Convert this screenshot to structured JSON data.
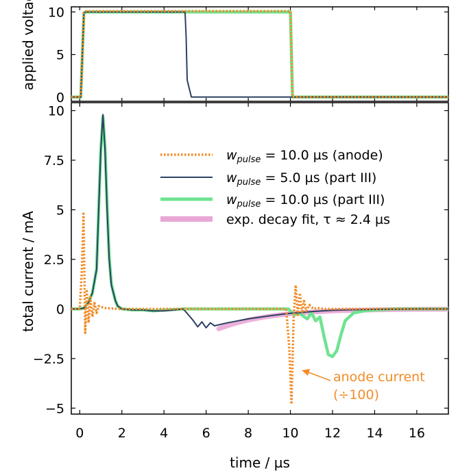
{
  "chart_data": [
    {
      "type": "line",
      "xlim": [
        -0.4,
        17.5
      ],
      "ylim": [
        -0.5,
        10.6
      ],
      "yticks": [
        0,
        5,
        10
      ],
      "series": [
        {
          "name": "w_pulse = 10.0 µs (anode)",
          "color": "#f28c28",
          "style": "dotted",
          "x": [
            -0.4,
            0,
            0.05,
            0.2,
            0.3,
            9.9,
            10.0,
            10.1,
            17.5
          ],
          "y": [
            0,
            0,
            0,
            9.9,
            10.1,
            10.1,
            10.1,
            0,
            0
          ]
        },
        {
          "name": "w_pulse = 5.0 µs (part III)",
          "color": "#2c4060",
          "style": "solid",
          "x": [
            -0.4,
            0,
            0.05,
            0.2,
            0.3,
            5.0,
            5.05,
            5.1,
            5.3,
            17.5
          ],
          "y": [
            0,
            0,
            0,
            9.9,
            10.0,
            10.0,
            7,
            2,
            0,
            0
          ]
        },
        {
          "name": "w_pulse = 10.0 µs (part III)",
          "color": "#6fe391",
          "style": "solid",
          "x": [
            -0.4,
            0,
            0.05,
            0.2,
            0.3,
            9.9,
            10.0,
            10.1,
            17.5
          ],
          "y": [
            0,
            0,
            0,
            9.9,
            10.0,
            10.0,
            10.0,
            0,
            0
          ]
        }
      ]
    },
    {
      "type": "line",
      "xlim": [
        -0.4,
        17.5
      ],
      "ylim": [
        -5.3,
        10.4
      ],
      "xticks": [
        0,
        2,
        4,
        6,
        8,
        10,
        12,
        14,
        16
      ],
      "yticks": [
        -5,
        -2.5,
        0,
        2.5,
        5,
        7.5,
        10
      ],
      "series": [
        {
          "name": "anode",
          "color": "#f28c28",
          "style": "dotted",
          "x": [
            -0.4,
            0,
            0.1,
            0.18,
            0.26,
            0.34,
            0.42,
            0.5,
            0.6,
            0.7,
            0.8,
            0.9,
            1.0,
            1.2,
            1.5,
            2,
            9.8,
            9.95,
            10.05,
            10.15,
            10.25,
            10.35,
            10.45,
            10.55,
            10.65,
            10.75,
            10.9,
            11.1,
            11.3,
            11.6,
            12,
            17.5
          ],
          "y": [
            0,
            0,
            2.0,
            4.8,
            -1.2,
            0.9,
            -0.7,
            0.6,
            -0.4,
            0.3,
            -0.2,
            0.15,
            0.1,
            0.05,
            0.02,
            0,
            0,
            -2,
            -4.8,
            -0.5,
            1.2,
            -0.3,
            0.8,
            -0.2,
            0.4,
            -0.1,
            0.2,
            0,
            0.05,
            0,
            0,
            0
          ]
        },
        {
          "name": "w_pulse = 5.0 µs (part III)",
          "color": "#2c4060",
          "style": "solid",
          "x": [
            -0.4,
            0,
            0.2,
            0.4,
            0.6,
            0.8,
            0.9,
            1.0,
            1.1,
            1.2,
            1.3,
            1.4,
            1.5,
            1.6,
            1.7,
            1.8,
            2.0,
            2.5,
            3,
            3.5,
            4,
            4.5,
            4.9,
            5.0,
            5.2,
            5.4,
            5.6,
            5.8,
            6.0,
            6.2,
            6.4,
            6.6,
            6.8,
            7,
            7.5,
            8,
            8.5,
            9,
            9.5,
            10,
            10.5,
            11,
            12,
            13,
            14,
            15,
            16,
            17.5
          ],
          "y": [
            0,
            0,
            0.05,
            0.3,
            0.8,
            2.0,
            5.0,
            8.0,
            9.8,
            8.0,
            5.0,
            2.5,
            1.2,
            0.8,
            0.4,
            0.15,
            0,
            -0.05,
            -0.05,
            -0.1,
            -0.1,
            -0.05,
            0,
            -0.1,
            -0.35,
            -0.6,
            -0.9,
            -0.65,
            -0.95,
            -0.7,
            -0.85,
            -0.8,
            -0.75,
            -0.7,
            -0.6,
            -0.5,
            -0.42,
            -0.35,
            -0.28,
            -0.22,
            -0.18,
            -0.13,
            -0.07,
            -0.04,
            -0.02,
            -0.01,
            0,
            0
          ]
        },
        {
          "name": "w_pulse = 10.0 µs (part III)",
          "color": "#6fe391",
          "style": "solid",
          "x": [
            -0.4,
            0,
            0.2,
            0.4,
            0.6,
            0.8,
            0.9,
            1.0,
            1.1,
            1.2,
            1.3,
            1.4,
            1.5,
            1.6,
            1.7,
            1.8,
            2.0,
            2.5,
            3,
            3.5,
            4,
            5,
            6,
            7,
            8,
            9,
            9.9,
            10.0,
            10.2,
            10.4,
            10.6,
            10.8,
            11.0,
            11.2,
            11.4,
            11.6,
            11.8,
            12.0,
            12.2,
            12.4,
            12.6,
            13.0,
            13.5,
            14,
            15,
            16,
            17.5
          ],
          "y": [
            0,
            0,
            0.05,
            0.3,
            0.8,
            2.0,
            5.0,
            8.0,
            9.7,
            8.2,
            5.3,
            2.6,
            1.3,
            0.8,
            0.4,
            0.15,
            0,
            -0.05,
            -0.05,
            -0.1,
            -0.05,
            0,
            0,
            0,
            0,
            0,
            0,
            -0.1,
            -0.3,
            -0.2,
            -0.35,
            -0.5,
            -0.2,
            -0.6,
            -0.4,
            -1.4,
            -2.3,
            -2.4,
            -2.1,
            -1.3,
            -0.6,
            -0.2,
            -0.1,
            -0.05,
            0,
            0,
            0
          ]
        },
        {
          "name": "exp. decay fit, τ ≈ 2.4 µs",
          "color": "#e9a7d6",
          "style": "solid",
          "x": [
            6.6,
            7,
            7.5,
            8,
            8.5,
            9,
            9.5,
            10,
            10.5,
            11,
            11.5,
            12,
            12.5,
            13,
            14,
            15,
            16,
            17.5
          ],
          "y": [
            -1.0,
            -0.85,
            -0.69,
            -0.56,
            -0.46,
            -0.37,
            -0.3,
            -0.24,
            -0.2,
            -0.16,
            -0.13,
            -0.1,
            -0.08,
            -0.07,
            -0.045,
            -0.03,
            -0.02,
            -0.01
          ]
        }
      ]
    }
  ],
  "labels": {
    "ylabel_top": "applied voltage / kV",
    "ylabel_bottom": "total current / mA",
    "xlabel": "time / µs"
  },
  "ticks": {
    "top": [
      "0",
      "5",
      "10"
    ],
    "bottom": [
      "−5",
      "−2.5",
      "0",
      "2.5",
      "5",
      "7.5",
      "10"
    ],
    "x": [
      "0",
      "2",
      "4",
      "6",
      "8",
      "10",
      "12",
      "14",
      "16"
    ]
  },
  "legend": [
    {
      "w": "w",
      "sub": "pulse",
      "rest": " = 10.0 µs (anode)",
      "color": "#f28c28",
      "style": "dotted"
    },
    {
      "w": "w",
      "sub": "pulse",
      "rest": " = 5.0 µs (part III)",
      "color": "#2c4060",
      "style": "solid"
    },
    {
      "w": "w",
      "sub": "pulse",
      "rest": " = 10.0 µs (part III)",
      "color": "#6fe391",
      "style": "solid"
    },
    {
      "w": "",
      "sub": "",
      "rest": "exp. decay fit, τ ≈ 2.4 µs",
      "color": "#e9a7d6",
      "style": "solid"
    }
  ],
  "annotation": {
    "line1": "anode current",
    "line2": "(÷100)",
    "color": "#f28c28"
  }
}
